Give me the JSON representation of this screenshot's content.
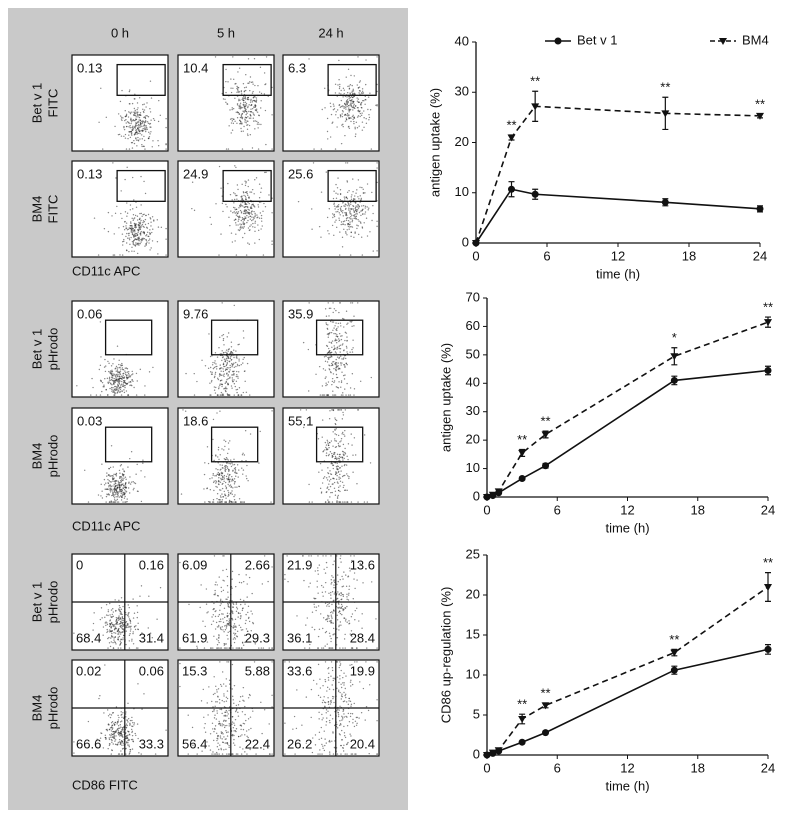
{
  "flow": {
    "columns": [
      "0 h",
      "5 h",
      "24 h"
    ],
    "blocks": [
      {
        "type": "gate",
        "x_label": "CD11c APC",
        "rows": [
          {
            "label": [
              "Bet v 1",
              "FITC"
            ],
            "values": [
              0.13,
              10.4,
              6.3
            ]
          },
          {
            "label": [
              "BM4",
              "FITC"
            ],
            "values": [
              0.13,
              24.9,
              25.6
            ]
          }
        ]
      },
      {
        "type": "gate",
        "x_label": "CD11c APC",
        "rows": [
          {
            "label": [
              "Bet v 1",
              "pHrodo"
            ],
            "values": [
              0.06,
              9.76,
              35.9
            ]
          },
          {
            "label": [
              "BM4",
              "pHrodo"
            ],
            "values": [
              0.03,
              18.6,
              55.1
            ]
          }
        ]
      },
      {
        "type": "quadrant",
        "x_label": "CD86 FITC",
        "rows": [
          {
            "label": [
              "Bet v 1",
              "pHrodo"
            ],
            "values": [
              [
                0,
                0.16,
                68.4,
                31.4
              ],
              [
                6.09,
                2.66,
                61.9,
                29.3
              ],
              [
                21.9,
                13.6,
                36.1,
                28.4
              ]
            ]
          },
          {
            "label": [
              "BM4",
              "pHrodo"
            ],
            "values": [
              [
                0.02,
                0.06,
                66.6,
                33.3
              ],
              [
                15.3,
                5.88,
                56.4,
                22.4
              ],
              [
                33.6,
                19.9,
                26.2,
                20.4
              ]
            ]
          }
        ]
      }
    ]
  },
  "chart_data": [
    {
      "type": "line",
      "x_label": "time (h)",
      "y_label": "antigen uptake (%)",
      "legend": "top",
      "x": [
        0,
        3,
        5,
        16,
        24
      ],
      "xlim": [
        0,
        24
      ],
      "xticks": [
        0,
        6,
        12,
        18,
        24
      ],
      "ylim": [
        0,
        40
      ],
      "yticks": [
        0,
        10,
        20,
        30,
        40
      ],
      "series": [
        {
          "name": "Bet v 1",
          "color": "#111111",
          "dash": "solid",
          "marker": "circle",
          "values": [
            0,
            10.7,
            9.7,
            8.1,
            6.8
          ],
          "errors": [
            0,
            1.5,
            1,
            0.7,
            0.6
          ]
        },
        {
          "name": "BM4",
          "color": "#111111",
          "dash": "dashed",
          "marker": "triangle-down",
          "values": [
            0,
            21,
            27.2,
            25.8,
            25.3
          ],
          "errors": [
            0,
            0.5,
            3,
            3.2,
            0.4
          ]
        }
      ],
      "annotations": [
        {
          "x": 3,
          "text": "**"
        },
        {
          "x": 5,
          "text": "**"
        },
        {
          "x": 16,
          "text": "**"
        },
        {
          "x": 24,
          "text": "**"
        }
      ]
    },
    {
      "type": "line",
      "x_label": "time (h)",
      "y_label": "antigen uptake (%)",
      "x": [
        0,
        0.5,
        1,
        3,
        5,
        16,
        24
      ],
      "xlim": [
        0,
        24
      ],
      "xticks": [
        0,
        6,
        12,
        18,
        24
      ],
      "ylim": [
        0,
        70
      ],
      "yticks": [
        0,
        10,
        20,
        30,
        40,
        50,
        60,
        70
      ],
      "series": [
        {
          "color": "#111111",
          "dash": "solid",
          "marker": "circle",
          "values": [
            0,
            0.5,
            1.5,
            6.5,
            11,
            41,
            44.5
          ],
          "errors": [
            0,
            0.3,
            0.3,
            0.5,
            0.8,
            1.5,
            1.5
          ]
        },
        {
          "color": "#111111",
          "dash": "dashed",
          "marker": "triangle-down",
          "values": [
            0,
            0.8,
            2,
            15.5,
            22,
            49.5,
            61.5
          ],
          "errors": [
            0,
            0.3,
            0.5,
            1.2,
            1.2,
            3,
            1.8
          ]
        }
      ],
      "annotations": [
        {
          "x": 3,
          "text": "**"
        },
        {
          "x": 5,
          "text": "**"
        },
        {
          "x": 16,
          "text": "*"
        },
        {
          "x": 24,
          "text": "**"
        }
      ]
    },
    {
      "type": "line",
      "x_label": "time (h)",
      "y_label": "CD86 up-regulation (%)",
      "x": [
        0,
        0.5,
        1,
        3,
        5,
        16,
        24
      ],
      "xlim": [
        0,
        24
      ],
      "xticks": [
        0,
        6,
        12,
        18,
        24
      ],
      "ylim": [
        0,
        25
      ],
      "yticks": [
        0,
        5,
        10,
        15,
        20,
        25
      ],
      "series": [
        {
          "color": "#111111",
          "dash": "solid",
          "marker": "circle",
          "values": [
            0,
            0.2,
            0.5,
            1.6,
            2.8,
            10.6,
            13.2
          ],
          "errors": [
            0,
            0.1,
            0.1,
            0.1,
            0.15,
            0.5,
            0.6
          ]
        },
        {
          "color": "#111111",
          "dash": "dashed",
          "marker": "triangle-down",
          "values": [
            0,
            0.3,
            0.6,
            4.5,
            6.2,
            12.8,
            21
          ],
          "errors": [
            0,
            0.1,
            0.1,
            0.6,
            0.3,
            0.4,
            1.8
          ]
        }
      ],
      "annotations": [
        {
          "x": 3,
          "text": "**"
        },
        {
          "x": 5,
          "text": "**"
        },
        {
          "x": 16,
          "text": "**"
        },
        {
          "x": 24,
          "text": "**"
        }
      ]
    }
  ]
}
